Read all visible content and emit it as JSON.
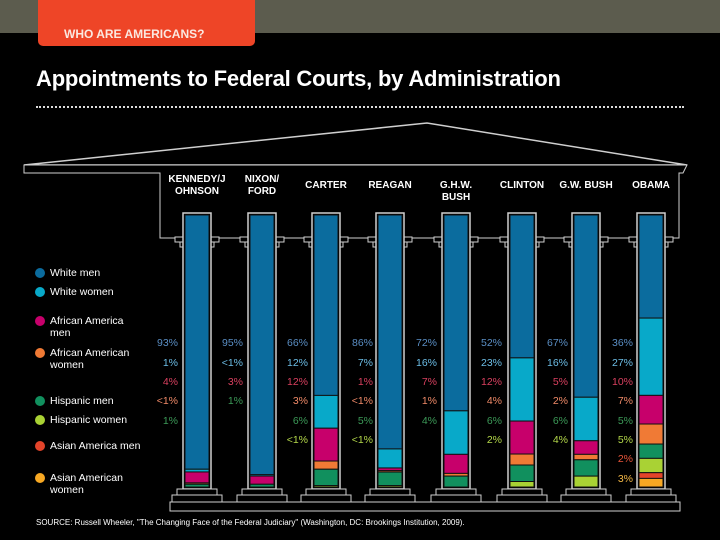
{
  "header": {
    "tab_label": "WHO ARE AMERICANS?",
    "title": "Appointments to Federal Courts, by Administration"
  },
  "source": "SOURCE: Russell Wheeler, \"The Changing Face of the Federal Judiciary\" (Washington, DC: Brookings Institution, 2009).",
  "chart_data": {
    "type": "bar",
    "stacked": true,
    "title": "Appointments to Federal Courts, by Administration",
    "unit": "%",
    "categories": [
      "KENNEDY/JOHNSON",
      "NIXON/FORD",
      "CARTER",
      "REAGAN",
      "G.H.W. BUSH",
      "CLINTON",
      "G.W. BUSH",
      "OBAMA"
    ],
    "category_labels": [
      [
        "KENNEDY/J",
        "OHNSON"
      ],
      [
        "NIXON/",
        "FORD"
      ],
      [
        "CARTER"
      ],
      [
        "REAGAN"
      ],
      [
        "G.H.W.",
        "BUSH"
      ],
      [
        "CLINTON"
      ],
      [
        "G.W. BUSH"
      ],
      [
        "OBAMA"
      ]
    ],
    "legend_position": "left",
    "series": [
      {
        "name": "White men",
        "color": "#0b6c9e",
        "label_color": "#5a8ec4",
        "values": [
          93,
          95,
          66,
          86,
          72,
          52,
          67,
          36
        ],
        "labels": [
          "93%",
          "95%",
          "66%",
          "86%",
          "72%",
          "52%",
          "67%",
          "36%"
        ]
      },
      {
        "name": "White women",
        "color": "#08a9c9",
        "label_color": "#6cbde6",
        "values": [
          1,
          0.5,
          12,
          7,
          16,
          23,
          16,
          27
        ],
        "labels": [
          "1%",
          "<1%",
          "12%",
          "7%",
          "16%",
          "23%",
          "16%",
          "27%"
        ]
      },
      {
        "name": "African America men",
        "color": "#c7006b",
        "label_color": "#d9405f",
        "values": [
          4,
          3,
          12,
          1,
          7,
          12,
          5,
          10
        ],
        "labels": [
          "4%",
          "3%",
          "12%",
          "1%",
          "7%",
          "12%",
          "5%",
          "10%"
        ]
      },
      {
        "name": "African American women",
        "color": "#f07a35",
        "label_color": "#f08a68",
        "values": [
          0.5,
          null,
          3,
          0.5,
          1,
          4,
          2,
          7
        ],
        "labels": [
          "<1%",
          null,
          "3%",
          "<1%",
          "1%",
          "4%",
          "2%",
          "7%"
        ]
      },
      {
        "name": "Hispanic men",
        "color": "#11905e",
        "label_color": "#3c9a58",
        "values": [
          1,
          1,
          6,
          5,
          4,
          6,
          6,
          5
        ],
        "labels": [
          "1%",
          "1%",
          "6%",
          "5%",
          "4%",
          "6%",
          "6%",
          "5%"
        ]
      },
      {
        "name": "Hispanic women",
        "color": "#a9d234",
        "label_color": "#b4d84a",
        "values": [
          null,
          null,
          0.5,
          0.5,
          null,
          2,
          4,
          5
        ],
        "labels": [
          null,
          null,
          "<1%",
          "<1%",
          null,
          "2%",
          "4%",
          "5%"
        ]
      },
      {
        "name": "Asian America men",
        "color": "#e3442a",
        "label_color": "#e9553a",
        "values": [
          null,
          null,
          null,
          null,
          null,
          null,
          null,
          2
        ],
        "labels": [
          null,
          null,
          null,
          null,
          null,
          null,
          null,
          "2%"
        ]
      },
      {
        "name": "Asian American women",
        "color": "#f7a823",
        "label_color": "#f4b845",
        "values": [
          null,
          null,
          null,
          null,
          null,
          null,
          null,
          3
        ],
        "labels": [
          null,
          null,
          null,
          null,
          null,
          null,
          null,
          "3%"
        ]
      }
    ]
  }
}
